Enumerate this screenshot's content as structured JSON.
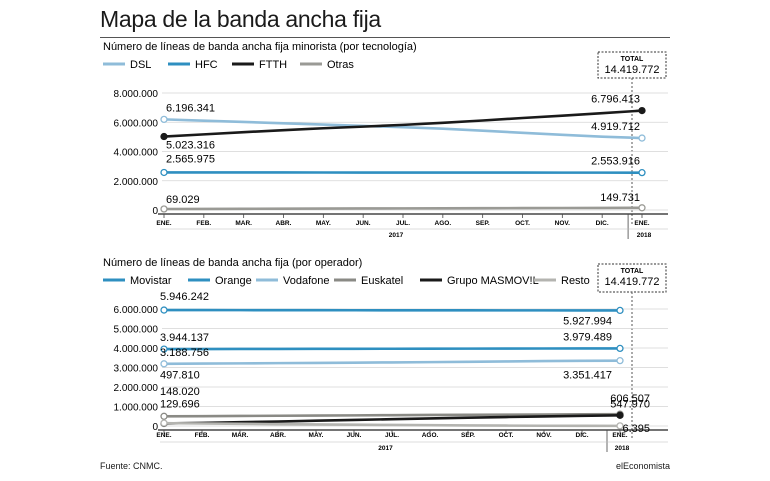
{
  "title": "Mapa de la banda ancha fija",
  "source": "Fuente: CNMC.",
  "brand": "elEconomista",
  "chart_data": [
    {
      "type": "line",
      "title": "Número de líneas de banda ancha fija minorista (por tecnología)",
      "total_label": "TOTAL",
      "total_value": "14.419.772",
      "x": [
        "ENE.",
        "FEB.",
        "MAR.",
        "ABR.",
        "MAY.",
        "JUN.",
        "JUL.",
        "AGO.",
        "SEP.",
        "OCT.",
        "NOV.",
        "DIC.",
        "ENE."
      ],
      "year_labels": [
        "2017",
        "2018"
      ],
      "y_ticks": [
        "8.000.000",
        "6.000.000",
        "4.000.000",
        "2.000.000",
        "0"
      ],
      "ylim": [
        0,
        8000000
      ],
      "series": [
        {
          "name": "DSL",
          "color": "#8fbcd9",
          "values": [
            6196341,
            6110000,
            6020000,
            5930000,
            5840000,
            5750000,
            5660000,
            5560000,
            5420000,
            5280000,
            5140000,
            5010000,
            4919712
          ],
          "start_label": "6.196.341",
          "end_label": "4.919.712"
        },
        {
          "name": "HFC",
          "color": "#2e8fc0",
          "values": [
            2565975,
            2566000,
            2566000,
            2565000,
            2564000,
            2563000,
            2562000,
            2560000,
            2559000,
            2558000,
            2556000,
            2555000,
            2553916
          ],
          "start_label": "2.565.975",
          "end_label": "2.553.916"
        },
        {
          "name": "FTTH",
          "color": "#1a1a1a",
          "values": [
            5023316,
            5170000,
            5320000,
            5460000,
            5590000,
            5700000,
            5820000,
            5960000,
            6120000,
            6290000,
            6450000,
            6620000,
            6796413
          ],
          "start_label": "5.023.316",
          "end_label": "6.796.413"
        },
        {
          "name": "Otras",
          "color": "#9a9a95",
          "values": [
            69029,
            76000,
            83000,
            90000,
            97000,
            104000,
            111000,
            118000,
            125000,
            131000,
            137000,
            143000,
            149731
          ],
          "start_label": "69.029",
          "end_label": "149.731"
        }
      ]
    },
    {
      "type": "line",
      "title": "Número de líneas de banda ancha fija (por operador)",
      "total_label": "TOTAL",
      "total_value": "14.419.772",
      "x": [
        "ENE.",
        "FEB.",
        "MAR.",
        "ABR.",
        "MAY.",
        "JUN.",
        "JUL.",
        "AGO.",
        "SEP.",
        "OCT.",
        "NOV.",
        "DIC.",
        "ENE."
      ],
      "year_labels": [
        "2017",
        "2018"
      ],
      "y_ticks": [
        "6.000.000",
        "5.000.000",
        "4.000.000",
        "3.000.000",
        "2.000.000",
        "1.000.000",
        "0"
      ],
      "ylim": [
        0,
        6000000
      ],
      "series": [
        {
          "name": "Movistar",
          "color": "#2e8fc0",
          "values": [
            5946242,
            5944000,
            5942000,
            5940000,
            5938000,
            5936000,
            5934000,
            5932000,
            5931000,
            5930000,
            5929000,
            5928000,
            5927994
          ],
          "start_label": "5.946.242",
          "end_label": "5.927.994"
        },
        {
          "name": "Orange",
          "color": "#2e8fc0",
          "values": [
            3944137,
            3947000,
            3950000,
            3953000,
            3956000,
            3959000,
            3962000,
            3965000,
            3968000,
            3971000,
            3974000,
            3977000,
            3979489
          ],
          "start_label": "3.944.137",
          "end_label": "3.979.489"
        },
        {
          "name": "Vodafone",
          "color": "#8fbcd9",
          "values": [
            3188756,
            3200000,
            3212000,
            3224000,
            3236000,
            3248000,
            3262000,
            3276000,
            3292000,
            3310000,
            3328000,
            3342000,
            3351417
          ],
          "start_label": "3.188.756",
          "end_label": "3.351.417"
        },
        {
          "name": "Euskatel",
          "color": "#8a8a85",
          "values": [
            497810,
            505000,
            515000,
            525000,
            535000,
            545000,
            555000,
            565000,
            572000,
            580000,
            588000,
            597000,
            606507
          ],
          "start_label": "497.810",
          "end_label": "606.507"
        },
        {
          "name": "Grupo MASMOV!L",
          "color": "#1a1a1a",
          "values": [
            129696,
            160000,
            195000,
            230000,
            270000,
            310000,
            350000,
            390000,
            425000,
            460000,
            490000,
            520000,
            547970
          ],
          "start_label": "129.696",
          "end_label": "547.970"
        },
        {
          "name": "Resto",
          "color": "#b4b4b0",
          "values": [
            148020,
            128000,
            110000,
            95000,
            80000,
            65000,
            52000,
            40000,
            30000,
            20000,
            13000,
            8000,
            6395
          ],
          "start_label": "148.020",
          "end_label": "6.395"
        }
      ]
    }
  ]
}
